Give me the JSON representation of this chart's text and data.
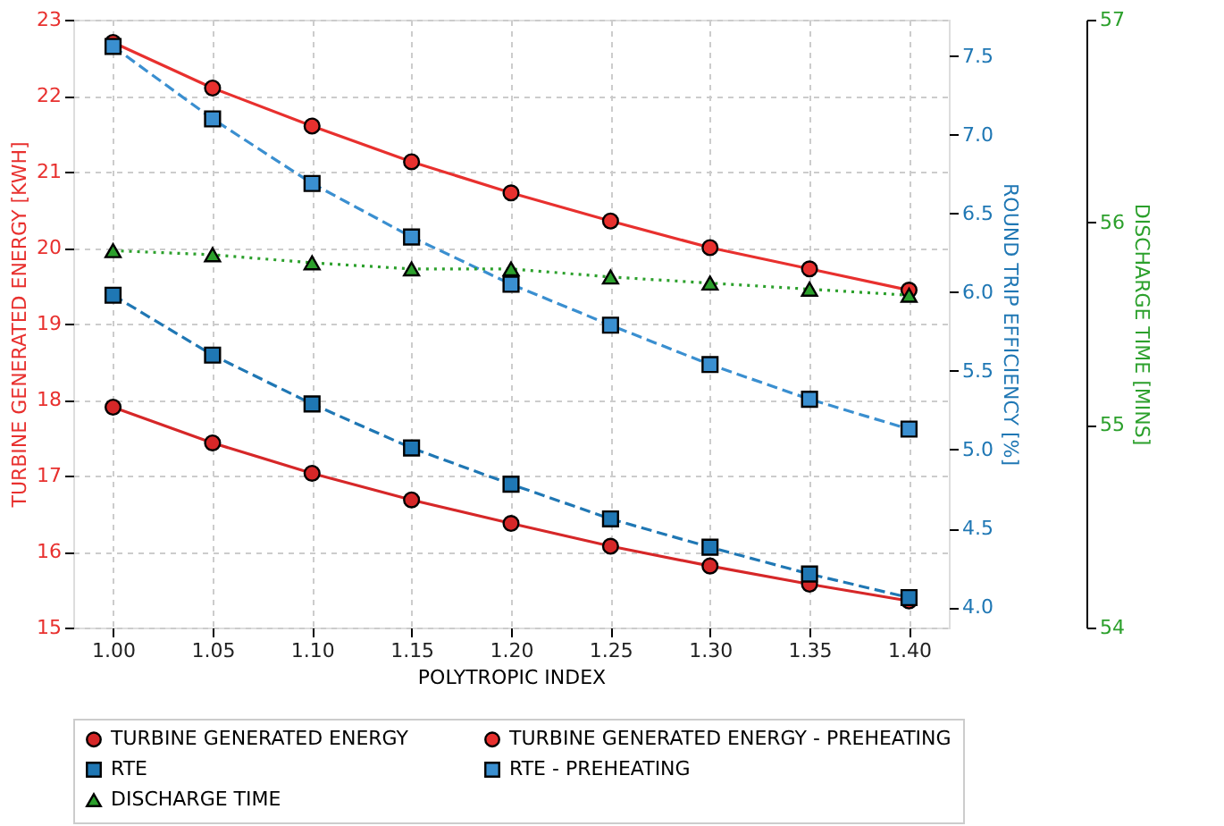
{
  "chart_data": {
    "type": "line",
    "xlabel": "POLYTROPIC INDEX",
    "ylabel": "TURBINE GENERATED ENERGY [KWH]",
    "y2label": "ROUND TRIP EFFICIENCY [%]",
    "y3label": "DISCHARGE TIME [MINS]",
    "x": [
      1.0,
      1.05,
      1.1,
      1.15,
      1.2,
      1.25,
      1.3,
      1.35,
      1.4
    ],
    "series": [
      {
        "name": "TURBINE GENERATED ENERGY",
        "color": "#d62728",
        "marker": "circle",
        "line_style": "solid",
        "axis": "y",
        "values": [
          17.9,
          17.43,
          17.03,
          16.68,
          16.37,
          16.07,
          15.81,
          15.57,
          15.35
        ]
      },
      {
        "name": "TURBINE GENERATED ENERGY - PREHEATING",
        "color": "#e8302e",
        "marker": "circle",
        "line_style": "solid",
        "axis": "y",
        "values": [
          22.7,
          22.1,
          21.6,
          21.13,
          20.72,
          20.35,
          20.0,
          19.72,
          19.44
        ]
      },
      {
        "name": "RTE",
        "color": "#1f77b4",
        "marker": "square",
        "line_style": "dashed",
        "axis": "y2",
        "values": [
          5.98,
          5.6,
          5.29,
          5.01,
          4.78,
          4.56,
          4.38,
          4.21,
          4.06
        ]
      },
      {
        "name": "RTE - PREHEATING",
        "color": "#3a8fd0",
        "marker": "square",
        "line_style": "dashed",
        "axis": "y2",
        "values": [
          7.56,
          7.1,
          6.69,
          6.35,
          6.05,
          5.79,
          5.54,
          5.32,
          5.13
        ]
      },
      {
        "name": "DISCHARGE TIME",
        "color": "#2ca02c",
        "marker": "triangle",
        "line_style": "dotted",
        "axis": "y3",
        "values": [
          55.86,
          55.84,
          55.8,
          55.77,
          55.77,
          55.73,
          55.7,
          55.67,
          55.64
        ]
      }
    ],
    "xlim": [
      0.98,
      1.42
    ],
    "xticks": [
      {
        "value": 1.0,
        "label": "1.00"
      },
      {
        "value": 1.05,
        "label": "1.05"
      },
      {
        "value": 1.1,
        "label": "1.10"
      },
      {
        "value": 1.15,
        "label": "1.15"
      },
      {
        "value": 1.2,
        "label": "1.20"
      },
      {
        "value": 1.25,
        "label": "1.25"
      },
      {
        "value": 1.3,
        "label": "1.30"
      },
      {
        "value": 1.35,
        "label": "1.35"
      },
      {
        "value": 1.4,
        "label": "1.40"
      }
    ],
    "ylim": [
      15,
      23
    ],
    "yticks": [
      {
        "value": 15,
        "label": "15"
      },
      {
        "value": 16,
        "label": "16"
      },
      {
        "value": 17,
        "label": "17"
      },
      {
        "value": 18,
        "label": "18"
      },
      {
        "value": 19,
        "label": "19"
      },
      {
        "value": 20,
        "label": "20"
      },
      {
        "value": 21,
        "label": "21"
      },
      {
        "value": 22,
        "label": "22"
      },
      {
        "value": 23,
        "label": "23"
      }
    ],
    "y2lim": [
      3.87,
      7.73
    ],
    "y2ticks": [
      {
        "value": 4,
        "label": "4.0"
      },
      {
        "value": 4.5,
        "label": "4.5"
      },
      {
        "value": 5,
        "label": "5.0"
      },
      {
        "value": 5.5,
        "label": "5.5"
      },
      {
        "value": 6,
        "label": "6.0"
      },
      {
        "value": 6.5,
        "label": "6.5"
      },
      {
        "value": 7,
        "label": "7.0"
      },
      {
        "value": 7.5,
        "label": "7.5"
      }
    ],
    "y3lim": [
      54,
      57
    ],
    "y3ticks": [
      {
        "value": 54,
        "label": "54"
      },
      {
        "value": 55,
        "label": "55"
      },
      {
        "value": 56,
        "label": "56"
      },
      {
        "value": 57,
        "label": "57"
      }
    ],
    "grid": true,
    "legend": "bottom"
  }
}
